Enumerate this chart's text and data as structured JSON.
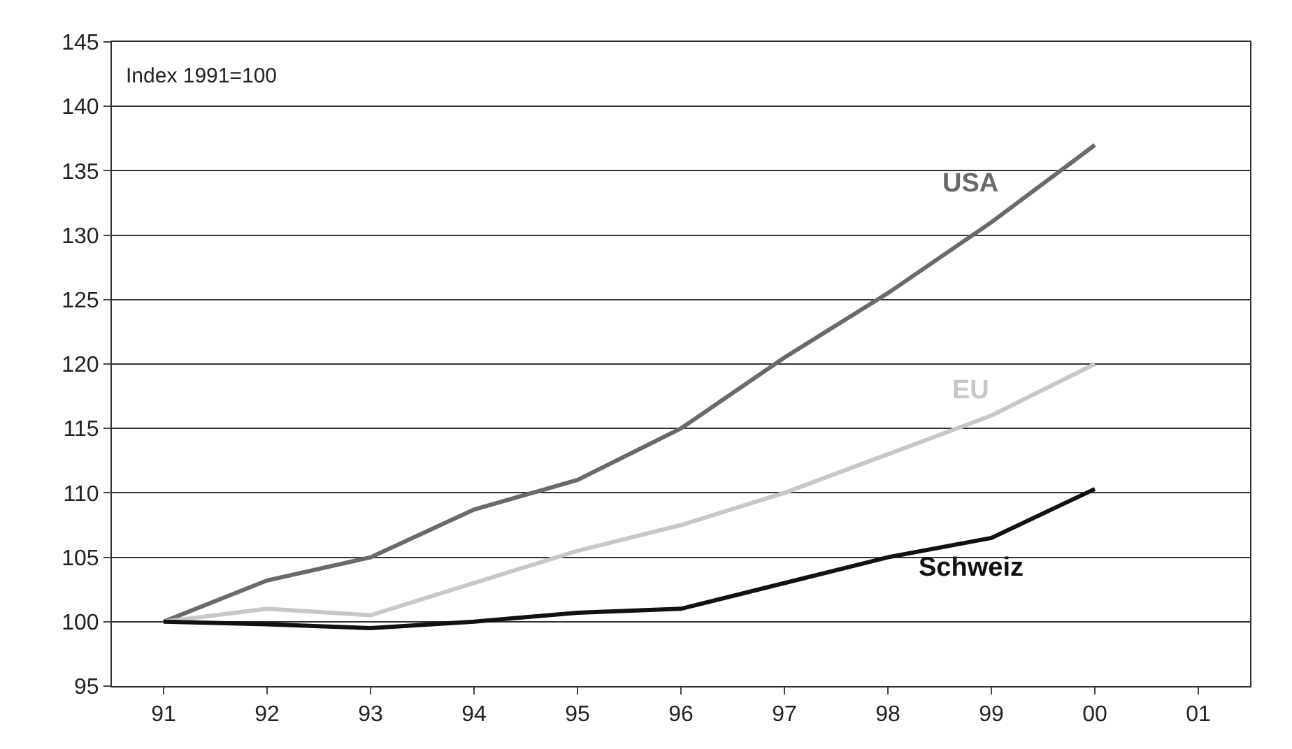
{
  "chart_data": {
    "type": "line",
    "categories": [
      "91",
      "92",
      "93",
      "94",
      "95",
      "96",
      "97",
      "98",
      "99",
      "00",
      "01"
    ],
    "series": [
      {
        "name": "USA",
        "color": "#6a6a6a",
        "values": [
          100,
          103.2,
          105,
          108.7,
          111,
          115,
          120.5,
          125.5,
          131,
          137,
          null
        ]
      },
      {
        "name": "EU",
        "color": "#c8c8c8",
        "values": [
          100,
          101,
          100.5,
          103,
          105.5,
          107.5,
          110,
          113,
          116,
          120,
          null
        ]
      },
      {
        "name": "Schweiz",
        "color": "#111111",
        "values": [
          100,
          99.8,
          99.5,
          100,
          100.7,
          101,
          103,
          105,
          106.5,
          110.3,
          null
        ]
      }
    ],
    "ylim": [
      95,
      145
    ],
    "yticks": [
      95,
      100,
      105,
      110,
      115,
      120,
      125,
      130,
      135,
      140,
      145
    ],
    "annotations": [
      "Index 1991=100"
    ],
    "grid": "y",
    "legend": false,
    "marker": "none",
    "line_style": "solid"
  }
}
